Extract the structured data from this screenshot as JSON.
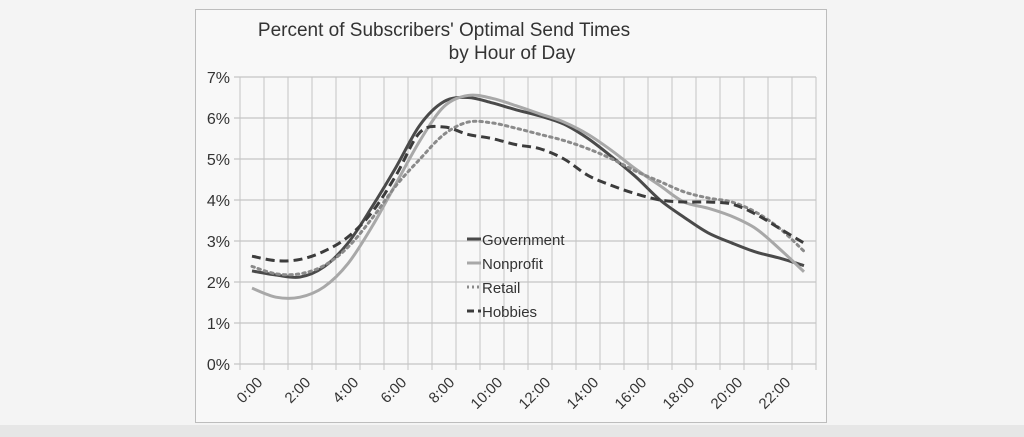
{
  "chart_data": {
    "type": "line",
    "title": [
      "Percent of Subscribers' Optimal Send Times",
      "by Hour of Day"
    ],
    "xlabel": "",
    "ylabel": "",
    "categories": [
      "0:00",
      "1:00",
      "2:00",
      "3:00",
      "4:00",
      "5:00",
      "6:00",
      "7:00",
      "8:00",
      "9:00",
      "10:00",
      "11:00",
      "12:00",
      "13:00",
      "14:00",
      "15:00",
      "16:00",
      "17:00",
      "18:00",
      "19:00",
      "20:00",
      "21:00",
      "22:00",
      "23:00"
    ],
    "x_tick_labels": [
      "0:00",
      "2:00",
      "4:00",
      "6:00",
      "8:00",
      "10:00",
      "12:00",
      "14:00",
      "16:00",
      "18:00",
      "20:00",
      "22:00"
    ],
    "y_tick_labels": [
      "0%",
      "1%",
      "2%",
      "3%",
      "4%",
      "5%",
      "6%",
      "7%"
    ],
    "ylim": [
      0,
      7
    ],
    "y_unit": "%",
    "grid": true,
    "legend_placement": "center",
    "series": [
      {
        "name": "Government",
        "color": "#4a4a4a",
        "style": "solid",
        "values": [
          2.27,
          2.17,
          2.12,
          2.37,
          2.95,
          3.83,
          4.8,
          5.83,
          6.4,
          6.5,
          6.37,
          6.2,
          6.05,
          5.85,
          5.5,
          5.05,
          4.56,
          4.0,
          3.58,
          3.2,
          2.95,
          2.73,
          2.58,
          2.4
        ]
      },
      {
        "name": "Nonprofit",
        "color": "#a8a8a8",
        "style": "solid",
        "values": [
          1.85,
          1.63,
          1.63,
          1.88,
          2.45,
          3.35,
          4.4,
          5.45,
          6.28,
          6.55,
          6.48,
          6.3,
          6.1,
          5.9,
          5.6,
          5.2,
          4.75,
          4.35,
          3.95,
          3.8,
          3.6,
          3.3,
          2.8,
          2.25
        ]
      },
      {
        "name": "Retail",
        "color": "#8a8a8a",
        "style": "dotted",
        "values": [
          2.38,
          2.2,
          2.2,
          2.4,
          2.85,
          3.55,
          4.35,
          5.0,
          5.6,
          5.9,
          5.88,
          5.75,
          5.6,
          5.45,
          5.25,
          5.0,
          4.7,
          4.45,
          4.2,
          4.05,
          3.95,
          3.7,
          3.3,
          2.75
        ]
      },
      {
        "name": "Hobbies",
        "color": "#3c3c3c",
        "style": "dashed",
        "values": [
          2.63,
          2.52,
          2.55,
          2.75,
          3.1,
          3.7,
          4.6,
          5.65,
          5.78,
          5.6,
          5.5,
          5.35,
          5.25,
          5.0,
          4.6,
          4.35,
          4.15,
          4.0,
          3.95,
          3.95,
          3.9,
          3.65,
          3.3,
          2.95
        ]
      }
    ]
  }
}
